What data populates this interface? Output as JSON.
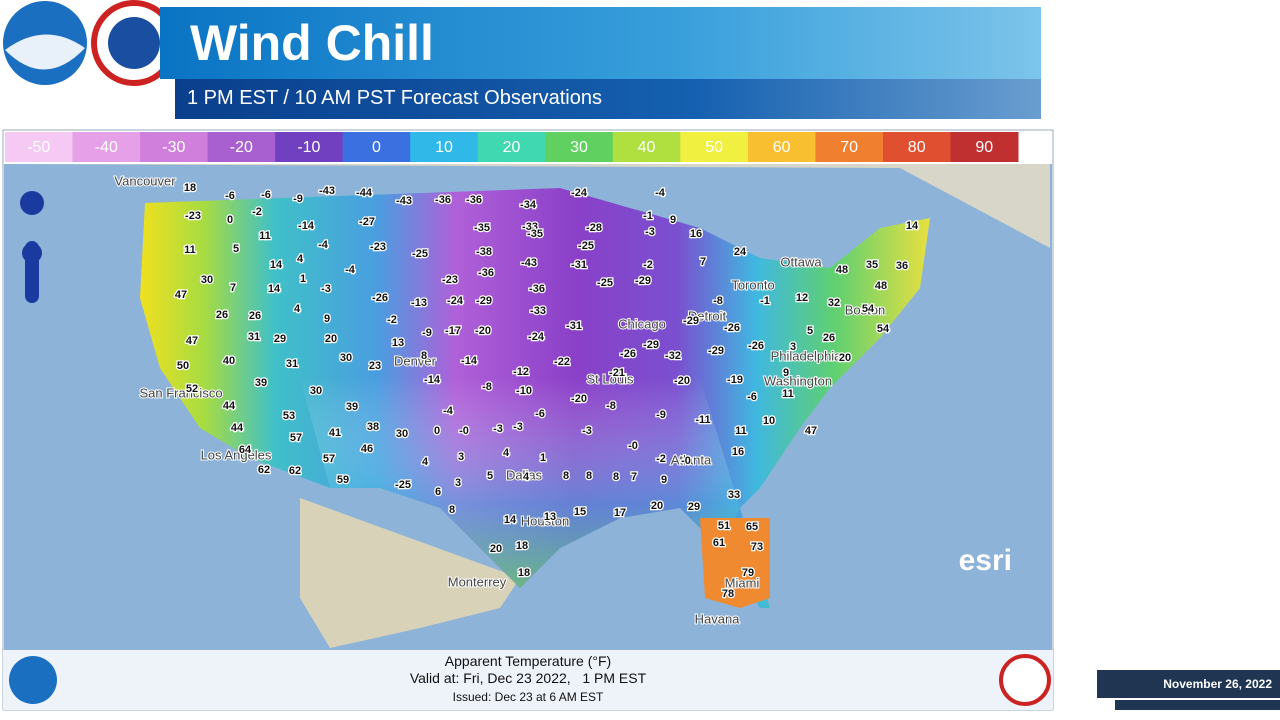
{
  "header": {
    "title": "Wind Chill",
    "subtitle": "1 PM EST / 10 AM PST Forecast Observations"
  },
  "legend": {
    "ticks": [
      "-50",
      "-40",
      "-30",
      "-20",
      "-10",
      "0",
      "10",
      "20",
      "30",
      "40",
      "50",
      "60",
      "70",
      "80",
      "90"
    ],
    "colors": [
      "#f6c8f4",
      "#e6a0e8",
      "#d080dc",
      "#a860d0",
      "#7040c0",
      "#3a70e0",
      "#30b8e8",
      "#40d8b0",
      "#60d060",
      "#b0e040",
      "#f0f040",
      "#f8c030",
      "#f08030",
      "#e05030",
      "#c03030"
    ]
  },
  "map": {
    "attribution": "esri",
    "cities": [
      "Vancouver",
      "Ottawa",
      "Toronto",
      "Boston",
      "Chicago",
      "Detroit",
      "Philadelphia",
      "Washington",
      "Denver",
      "St Louis",
      "San Francisco",
      "Los Angeles",
      "Dallas",
      "Houston",
      "Atlanta",
      "Miami",
      "Monterrey",
      "Havana"
    ],
    "readings": [
      "18",
      "-6",
      "-6",
      "-9",
      "-43",
      "-44",
      "-43",
      "-36",
      "-36",
      "-34",
      "-24",
      "-4",
      "-23",
      "0",
      "-2",
      "-14",
      "-27",
      "-35",
      "-33",
      "-28",
      "-1",
      "9",
      "-3",
      "16",
      "24",
      "14",
      "11",
      "5",
      "11",
      "-4",
      "-23",
      "-25",
      "-38",
      "-35",
      "-25",
      "14",
      "4",
      "-4",
      "-36",
      "-23",
      "-43",
      "-31",
      "-2",
      "7",
      "48",
      "35",
      "36",
      "30",
      "7",
      "14",
      "1",
      "-3",
      "-36",
      "-25",
      "-29",
      "48",
      "47",
      "4",
      "-26",
      "-13",
      "-24",
      "-29",
      "-33",
      "-8",
      "-1",
      "12",
      "32",
      "54",
      "26",
      "26",
      "9",
      "-2",
      "-9",
      "-17",
      "-20",
      "-31",
      "-29",
      "-29",
      "-26",
      "54",
      "47",
      "31",
      "29",
      "20",
      "13",
      "-24",
      "-26",
      "-32",
      "-29",
      "-26",
      "3",
      "5",
      "26",
      "20",
      "40",
      "50",
      "31",
      "30",
      "23",
      "8",
      "-14",
      "-22",
      "-12",
      "-21",
      "-20",
      "-19",
      "9",
      "39",
      "52",
      "30",
      "-14",
      "-8",
      "-10",
      "-20",
      "-8",
      "-6",
      "11",
      "44",
      "39",
      "53",
      "-4",
      "-6",
      "-9",
      "-11",
      "10",
      "44",
      "38",
      "41",
      "30",
      "0",
      "-0",
      "-3",
      "-3",
      "-3",
      "11",
      "47",
      "57",
      "46",
      "64",
      "-0",
      "-2",
      "-0",
      "16",
      "57",
      "62",
      "62",
      "4",
      "3",
      "4",
      "1",
      "5",
      "4",
      "8",
      "8",
      "8",
      "7",
      "9",
      "59",
      "-25",
      "3",
      "6",
      "33",
      "8",
      "14",
      "13",
      "15",
      "17",
      "20",
      "29",
      "51",
      "65",
      "20",
      "18",
      "61",
      "73",
      "18",
      "79",
      "78"
    ]
  },
  "footer": {
    "caption": "Apparent Temperature (°F)",
    "valid": "Valid at: Fri, Dec 23 2022,   1 PM EST",
    "issued": "Issued: Dec 23 at 6 AM EST",
    "date": "November 26, 2022"
  }
}
